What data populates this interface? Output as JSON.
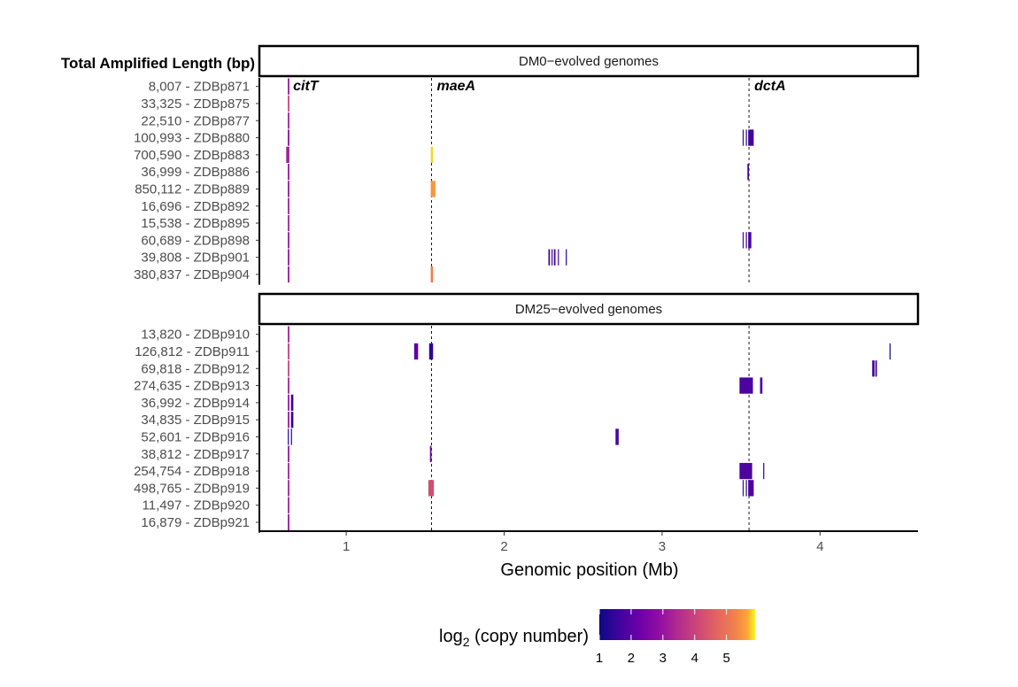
{
  "chart_data": {
    "type": "heatmap",
    "xlabel": "Genomic position (Mb)",
    "xlim": [
      0.45,
      4.62
    ],
    "x_ticks": [
      1,
      2,
      3,
      4
    ],
    "row_header": "Total Amplified Length (bp)",
    "genes": [
      {
        "name": "citT",
        "pos": 0.63
      },
      {
        "name": "maeA",
        "pos": 1.54
      },
      {
        "name": "dctA",
        "pos": 3.55
      }
    ],
    "legend": {
      "title_prefix": "log",
      "title_sub": "2",
      "title_suffix": " (copy number)",
      "min": 1,
      "max": 5.9,
      "ticks": [
        1,
        2,
        3,
        4,
        5
      ]
    },
    "panels": [
      {
        "title": "DM0−evolved genomes",
        "rows": [
          {
            "length": "8,007",
            "id": "ZDBp871",
            "segments": [
              {
                "start": 0.63,
                "end": 0.64,
                "v": 3.0
              }
            ]
          },
          {
            "length": "33,325",
            "id": "ZDBp875",
            "segments": [
              {
                "start": 0.63,
                "end": 0.64,
                "v": 4.0
              }
            ]
          },
          {
            "length": "22,510",
            "id": "ZDBp877",
            "segments": [
              {
                "start": 0.63,
                "end": 0.64,
                "v": 3.2
              }
            ]
          },
          {
            "length": "100,993",
            "id": "ZDBp880",
            "segments": [
              {
                "start": 0.63,
                "end": 0.64,
                "v": 2.8
              },
              {
                "start": 3.51,
                "end": 3.515,
                "v": 1.4
              },
              {
                "start": 3.53,
                "end": 3.535,
                "v": 1.4
              },
              {
                "start": 3.545,
                "end": 3.58,
                "v": 1.6
              }
            ]
          },
          {
            "length": "700,590",
            "id": "ZDBp883",
            "segments": [
              {
                "start": 0.62,
                "end": 0.64,
                "v": 3.2
              },
              {
                "start": 1.535,
                "end": 1.55,
                "v": 5.8
              }
            ]
          },
          {
            "length": "36,999",
            "id": "ZDBp886",
            "segments": [
              {
                "start": 0.63,
                "end": 0.64,
                "v": 3.0
              },
              {
                "start": 3.54,
                "end": 3.55,
                "v": 1.6
              }
            ]
          },
          {
            "length": "850,112",
            "id": "ZDBp889",
            "segments": [
              {
                "start": 0.63,
                "end": 0.64,
                "v": 3.0
              },
              {
                "start": 1.535,
                "end": 1.565,
                "v": 5.5
              }
            ]
          },
          {
            "length": "16,696",
            "id": "ZDBp892",
            "segments": [
              {
                "start": 0.63,
                "end": 0.64,
                "v": 3.2
              }
            ]
          },
          {
            "length": "15,538",
            "id": "ZDBp895",
            "segments": [
              {
                "start": 0.63,
                "end": 0.64,
                "v": 3.2
              }
            ]
          },
          {
            "length": "60,689",
            "id": "ZDBp898",
            "segments": [
              {
                "start": 0.63,
                "end": 0.64,
                "v": 3.0
              },
              {
                "start": 3.51,
                "end": 3.515,
                "v": 1.6
              },
              {
                "start": 3.53,
                "end": 3.535,
                "v": 1.6
              },
              {
                "start": 3.545,
                "end": 3.565,
                "v": 1.8
              }
            ]
          },
          {
            "length": "39,808",
            "id": "ZDBp901",
            "segments": [
              {
                "start": 0.63,
                "end": 0.64,
                "v": 3.0
              },
              {
                "start": 2.28,
                "end": 2.29,
                "v": 1.6
              },
              {
                "start": 2.3,
                "end": 2.305,
                "v": 1.6
              },
              {
                "start": 2.315,
                "end": 2.325,
                "v": 1.8
              },
              {
                "start": 2.34,
                "end": 2.345,
                "v": 1.8
              },
              {
                "start": 2.39,
                "end": 2.395,
                "v": 1.2
              }
            ]
          },
          {
            "length": "380,837",
            "id": "ZDBp904",
            "segments": [
              {
                "start": 0.63,
                "end": 0.64,
                "v": 3.0
              },
              {
                "start": 1.535,
                "end": 1.55,
                "v": 5.2
              }
            ]
          }
        ]
      },
      {
        "title": "DM25−evolved genomes",
        "rows": [
          {
            "length": "13,820",
            "id": "ZDBp910",
            "segments": [
              {
                "start": 0.63,
                "end": 0.64,
                "v": 3.2
              }
            ]
          },
          {
            "length": "126,812",
            "id": "ZDBp911",
            "segments": [
              {
                "start": 0.63,
                "end": 0.64,
                "v": 3.8
              },
              {
                "start": 1.43,
                "end": 1.455,
                "v": 2.0
              },
              {
                "start": 1.525,
                "end": 1.55,
                "v": 1.4
              },
              {
                "start": 4.44,
                "end": 4.445,
                "v": 1.0
              }
            ]
          },
          {
            "length": "69,818",
            "id": "ZDBp912",
            "segments": [
              {
                "start": 0.63,
                "end": 0.64,
                "v": 4.0
              },
              {
                "start": 4.33,
                "end": 4.345,
                "v": 1.6
              },
              {
                "start": 4.35,
                "end": 4.36,
                "v": 1.6
              }
            ]
          },
          {
            "length": "274,635",
            "id": "ZDBp913",
            "segments": [
              {
                "start": 0.63,
                "end": 0.64,
                "v": 3.2
              },
              {
                "start": 3.49,
                "end": 3.575,
                "v": 1.8
              },
              {
                "start": 3.62,
                "end": 3.635,
                "v": 1.8
              }
            ]
          },
          {
            "length": "36,992",
            "id": "ZDBp914",
            "segments": [
              {
                "start": 0.63,
                "end": 0.64,
                "v": 3.0
              },
              {
                "start": 0.65,
                "end": 0.665,
                "v": 1.6
              }
            ]
          },
          {
            "length": "34,835",
            "id": "ZDBp915",
            "segments": [
              {
                "start": 0.63,
                "end": 0.64,
                "v": 3.0
              },
              {
                "start": 0.65,
                "end": 0.665,
                "v": 1.4
              }
            ]
          },
          {
            "length": "52,601",
            "id": "ZDBp916",
            "segments": [
              {
                "start": 0.63,
                "end": 0.635,
                "v": 1.3
              },
              {
                "start": 0.65,
                "end": 0.655,
                "v": 1.3
              },
              {
                "start": 2.705,
                "end": 2.725,
                "v": 1.8
              }
            ]
          },
          {
            "length": "38,812",
            "id": "ZDBp917",
            "segments": [
              {
                "start": 0.63,
                "end": 0.64,
                "v": 3.0
              },
              {
                "start": 1.53,
                "end": 1.54,
                "v": 2.4
              }
            ]
          },
          {
            "length": "254,754",
            "id": "ZDBp918",
            "segments": [
              {
                "start": 0.63,
                "end": 0.64,
                "v": 3.2
              },
              {
                "start": 3.49,
                "end": 3.57,
                "v": 1.8
              },
              {
                "start": 3.64,
                "end": 3.645,
                "v": 1.2
              }
            ]
          },
          {
            "length": "498,765",
            "id": "ZDBp919",
            "segments": [
              {
                "start": 0.63,
                "end": 0.64,
                "v": 3.2
              },
              {
                "start": 1.52,
                "end": 1.555,
                "v": 4.2
              },
              {
                "start": 3.51,
                "end": 3.515,
                "v": 1.5
              },
              {
                "start": 3.53,
                "end": 3.535,
                "v": 1.5
              },
              {
                "start": 3.545,
                "end": 3.58,
                "v": 1.8
              }
            ]
          },
          {
            "length": "11,497",
            "id": "ZDBp920",
            "segments": [
              {
                "start": 0.63,
                "end": 0.64,
                "v": 3.2
              }
            ]
          },
          {
            "length": "16,879",
            "id": "ZDBp921",
            "segments": [
              {
                "start": 0.63,
                "end": 0.64,
                "v": 3.0
              }
            ]
          }
        ]
      }
    ]
  }
}
